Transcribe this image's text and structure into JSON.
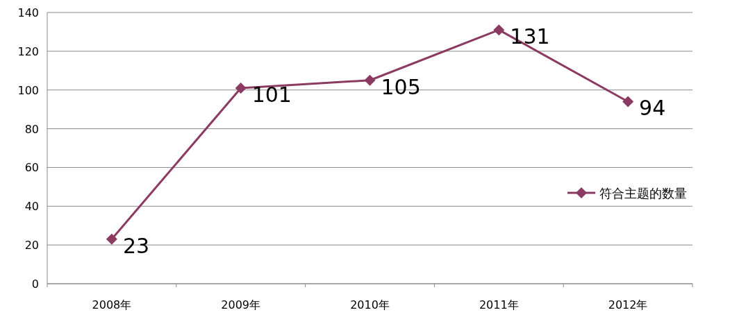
{
  "chart_data": {
    "type": "line",
    "categories": [
      "2008年",
      "2009年",
      "2010年",
      "2011年",
      "2012年"
    ],
    "series": [
      {
        "name": "符合主题的数量",
        "color": "#8b3a62",
        "values": [
          23,
          101,
          105,
          131,
          94
        ]
      }
    ],
    "ylim": [
      0,
      140
    ],
    "yticks": [
      0,
      20,
      40,
      60,
      80,
      100,
      120,
      140
    ],
    "grid": "y",
    "legend": "right",
    "marker": "diamond",
    "line_style": "solid",
    "data_labels": true
  }
}
